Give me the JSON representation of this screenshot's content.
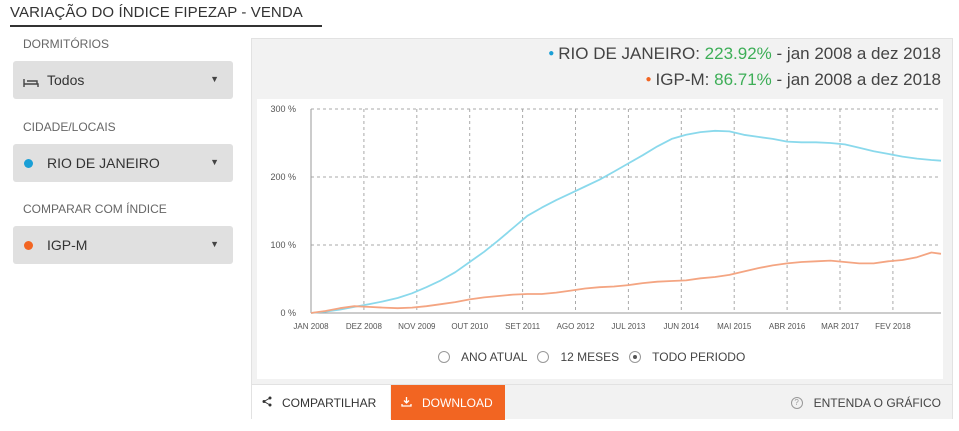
{
  "page": {
    "title": "VARIAÇÃO DO ÍNDICE FIPEZAP - VENDA"
  },
  "filters": {
    "bedrooms": {
      "label": "DORMITÓRIOS",
      "value": "Todos",
      "icon": "bed-icon"
    },
    "city": {
      "label": "CIDADE/LOCAIS",
      "value": "RIO DE JANEIRO",
      "dot_color": "#1a9fd6"
    },
    "compare": {
      "label": "COMPARAR COM ÍNDICE",
      "value": "IGP-M",
      "dot_color": "#f26522"
    }
  },
  "summary": [
    {
      "name": "RIO DE JANEIRO:",
      "pct": "223.92%",
      "range": "- jan 2008 a dez 2018",
      "dot_color": "#1a9fd6"
    },
    {
      "name": "IGP-M:",
      "pct": "86.71%",
      "range": "- jan 2008 a dez 2018",
      "dot_color": "#f26522"
    }
  ],
  "period": {
    "options": [
      "ANO ATUAL",
      "12 MESES",
      "TODO PERIODO"
    ],
    "selected": "TODO PERIODO"
  },
  "actions": {
    "share": "COMPARTILHAR",
    "download": "DOWNLOAD",
    "explain": "ENTENDA O GRÁFICO"
  },
  "colors": {
    "accent": "#f26522",
    "positive": "#3dae57",
    "series_rio": "#8ad9ec",
    "series_igpm": "#f4a582"
  },
  "chart_data": {
    "type": "line",
    "ylim": [
      0,
      300
    ],
    "yticks": [
      0,
      100,
      200,
      300
    ],
    "ytick_labels": [
      "0 %",
      "100 %",
      "200 %",
      "300 %"
    ],
    "xticks": [
      "JAN 2008",
      "DEZ 2008",
      "NOV 2009",
      "OUT 2010",
      "SET 2011",
      "AGO 2012",
      "JUL 2013",
      "JUN 2014",
      "MAI 2015",
      "ABR 2016",
      "MAR 2017",
      "FEV 2018"
    ],
    "x_months": [
      0,
      11,
      22,
      33,
      44,
      55,
      66,
      77,
      88,
      99,
      110,
      121
    ],
    "x_range": [
      0,
      131
    ],
    "grid": true,
    "series": [
      {
        "color": "#8ad9ec",
        "points": [
          [
            0,
            0
          ],
          [
            3,
            2
          ],
          [
            6,
            5
          ],
          [
            9,
            9
          ],
          [
            12,
            13
          ],
          [
            15,
            17
          ],
          [
            18,
            22
          ],
          [
            21,
            29
          ],
          [
            24,
            38
          ],
          [
            27,
            48
          ],
          [
            30,
            60
          ],
          [
            33,
            75
          ],
          [
            36,
            90
          ],
          [
            39,
            107
          ],
          [
            42,
            125
          ],
          [
            45,
            143
          ],
          [
            48,
            155
          ],
          [
            51,
            166
          ],
          [
            54,
            176
          ],
          [
            57,
            186
          ],
          [
            60,
            196
          ],
          [
            63,
            208
          ],
          [
            66,
            220
          ],
          [
            69,
            232
          ],
          [
            72,
            245
          ],
          [
            75,
            256
          ],
          [
            78,
            262
          ],
          [
            81,
            266
          ],
          [
            84,
            268
          ],
          [
            87,
            267
          ],
          [
            90,
            262
          ],
          [
            93,
            259
          ],
          [
            96,
            256
          ],
          [
            99,
            252
          ],
          [
            102,
            251
          ],
          [
            105,
            251
          ],
          [
            108,
            250
          ],
          [
            111,
            248
          ],
          [
            114,
            243
          ],
          [
            117,
            238
          ],
          [
            120,
            234
          ],
          [
            123,
            230
          ],
          [
            126,
            227
          ],
          [
            129,
            225
          ],
          [
            131,
            224
          ]
        ]
      },
      {
        "color": "#f4a582",
        "points": [
          [
            0,
            0
          ],
          [
            3,
            3
          ],
          [
            6,
            7
          ],
          [
            9,
            10
          ],
          [
            12,
            9
          ],
          [
            15,
            8
          ],
          [
            18,
            7
          ],
          [
            21,
            8
          ],
          [
            24,
            10
          ],
          [
            27,
            13
          ],
          [
            30,
            16
          ],
          [
            33,
            20
          ],
          [
            36,
            23
          ],
          [
            39,
            25
          ],
          [
            42,
            27
          ],
          [
            45,
            28
          ],
          [
            48,
            28
          ],
          [
            51,
            30
          ],
          [
            54,
            33
          ],
          [
            57,
            36
          ],
          [
            60,
            38
          ],
          [
            63,
            39
          ],
          [
            66,
            41
          ],
          [
            69,
            44
          ],
          [
            72,
            46
          ],
          [
            75,
            47
          ],
          [
            78,
            48
          ],
          [
            81,
            51
          ],
          [
            84,
            53
          ],
          [
            87,
            56
          ],
          [
            90,
            61
          ],
          [
            93,
            66
          ],
          [
            96,
            70
          ],
          [
            99,
            73
          ],
          [
            102,
            75
          ],
          [
            105,
            76
          ],
          [
            108,
            77
          ],
          [
            111,
            75
          ],
          [
            114,
            73
          ],
          [
            117,
            73
          ],
          [
            120,
            76
          ],
          [
            123,
            78
          ],
          [
            126,
            82
          ],
          [
            129,
            89
          ],
          [
            131,
            87
          ]
        ]
      }
    ]
  }
}
